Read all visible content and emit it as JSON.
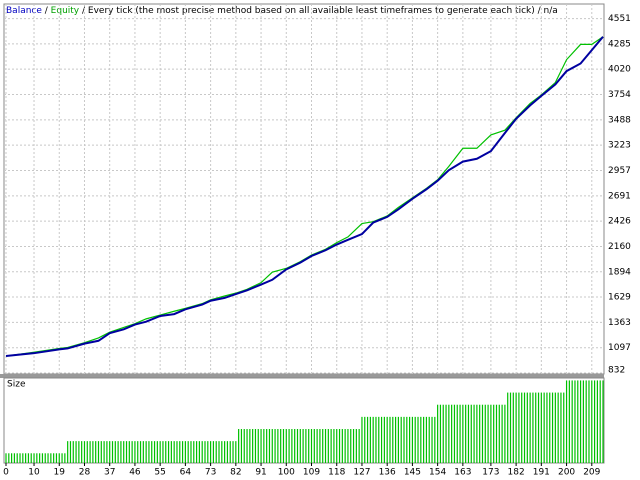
{
  "chart_data": {
    "type": "line",
    "legend": [
      "Balance",
      "Equity",
      "Every tick (the most precise method based on all available least timeframes to generate each tick)",
      "n/a"
    ],
    "x": [
      0,
      10,
      19,
      22,
      28,
      33,
      37,
      42,
      46,
      50,
      55,
      60,
      64,
      70,
      73,
      78,
      82,
      86,
      91,
      95,
      100,
      105,
      109,
      114,
      118,
      122,
      127,
      131,
      136,
      140,
      145,
      150,
      154,
      158,
      163,
      168,
      173,
      178,
      182,
      187,
      191,
      196,
      200,
      205,
      209,
      213
    ],
    "series": [
      {
        "name": "Balance",
        "color": "#00c000",
        "values": [
          1010,
          1050,
          1090,
          1100,
          1150,
          1200,
          1260,
          1310,
          1350,
          1400,
          1440,
          1480,
          1510,
          1560,
          1600,
          1640,
          1670,
          1710,
          1780,
          1890,
          1930,
          2000,
          2070,
          2130,
          2200,
          2260,
          2400,
          2420,
          2480,
          2570,
          2670,
          2770,
          2860,
          3000,
          3190,
          3190,
          3330,
          3380,
          3510,
          3660,
          3750,
          3880,
          4120,
          4280,
          4280,
          4360
        ]
      },
      {
        "name": "Equity",
        "color": "#0000a0",
        "values": [
          1010,
          1040,
          1080,
          1090,
          1140,
          1170,
          1250,
          1290,
          1340,
          1370,
          1430,
          1450,
          1500,
          1550,
          1590,
          1620,
          1660,
          1700,
          1760,
          1810,
          1920,
          1990,
          2060,
          2120,
          2180,
          2230,
          2290,
          2410,
          2470,
          2550,
          2660,
          2760,
          2850,
          2960,
          3050,
          3080,
          3160,
          3350,
          3500,
          3640,
          3740,
          3860,
          4000,
          4080,
          4220,
          4360
        ]
      }
    ],
    "xlim": [
      0,
      213
    ],
    "xticks": [
      0,
      10,
      19,
      28,
      37,
      46,
      55,
      64,
      73,
      82,
      91,
      100,
      109,
      118,
      127,
      136,
      145,
      154,
      163,
      173,
      182,
      191,
      200,
      209
    ],
    "ylim": [
      832,
      4704
    ],
    "yticks": [
      832,
      1097,
      1363,
      1629,
      1894,
      2160,
      2426,
      2691,
      2957,
      3223,
      3488,
      3754,
      4020,
      4285,
      4551
    ],
    "grid": true,
    "size_panel": {
      "type": "bar",
      "label": "Size",
      "color": "#00c000",
      "ylim": [
        0.02,
        0.72
      ],
      "values": [
        0.1,
        0.1,
        0.1,
        0.1,
        0.1,
        0.1,
        0.1,
        0.1,
        0.1,
        0.1,
        0.1,
        0.1,
        0.1,
        0.1,
        0.1,
        0.1,
        0.1,
        0.1,
        0.1,
        0.1,
        0.1,
        0.1,
        0.2,
        0.2,
        0.2,
        0.2,
        0.2,
        0.2,
        0.2,
        0.2,
        0.2,
        0.2,
        0.2,
        0.2,
        0.2,
        0.2,
        0.2,
        0.2,
        0.2,
        0.2,
        0.2,
        0.2,
        0.2,
        0.2,
        0.2,
        0.2,
        0.2,
        0.2,
        0.2,
        0.2,
        0.2,
        0.2,
        0.2,
        0.2,
        0.2,
        0.2,
        0.2,
        0.2,
        0.2,
        0.2,
        0.2,
        0.2,
        0.2,
        0.2,
        0.2,
        0.2,
        0.2,
        0.2,
        0.2,
        0.2,
        0.2,
        0.2,
        0.2,
        0.2,
        0.2,
        0.2,
        0.2,
        0.2,
        0.2,
        0.2,
        0.2,
        0.2,
        0.2,
        0.3,
        0.3,
        0.3,
        0.3,
        0.3,
        0.3,
        0.3,
        0.3,
        0.3,
        0.3,
        0.3,
        0.3,
        0.3,
        0.3,
        0.3,
        0.3,
        0.3,
        0.3,
        0.3,
        0.3,
        0.3,
        0.3,
        0.3,
        0.3,
        0.3,
        0.3,
        0.3,
        0.3,
        0.3,
        0.3,
        0.3,
        0.3,
        0.3,
        0.3,
        0.3,
        0.3,
        0.3,
        0.3,
        0.3,
        0.3,
        0.3,
        0.3,
        0.3,
        0.3,
        0.4,
        0.4,
        0.4,
        0.4,
        0.4,
        0.4,
        0.4,
        0.4,
        0.4,
        0.4,
        0.4,
        0.4,
        0.4,
        0.4,
        0.4,
        0.4,
        0.4,
        0.4,
        0.4,
        0.4,
        0.4,
        0.4,
        0.4,
        0.4,
        0.4,
        0.4,
        0.4,
        0.5,
        0.5,
        0.5,
        0.5,
        0.5,
        0.5,
        0.5,
        0.5,
        0.5,
        0.5,
        0.5,
        0.5,
        0.5,
        0.5,
        0.5,
        0.5,
        0.5,
        0.5,
        0.5,
        0.5,
        0.5,
        0.5,
        0.5,
        0.5,
        0.5,
        0.6,
        0.6,
        0.6,
        0.6,
        0.6,
        0.6,
        0.6,
        0.6,
        0.6,
        0.6,
        0.6,
        0.6,
        0.6,
        0.6,
        0.6,
        0.6,
        0.6,
        0.6,
        0.6,
        0.6,
        0.6,
        0.7,
        0.7,
        0.7,
        0.7,
        0.7,
        0.7,
        0.7,
        0.7,
        0.7,
        0.7,
        0.7,
        0.7,
        0.7,
        0.7
      ]
    }
  }
}
